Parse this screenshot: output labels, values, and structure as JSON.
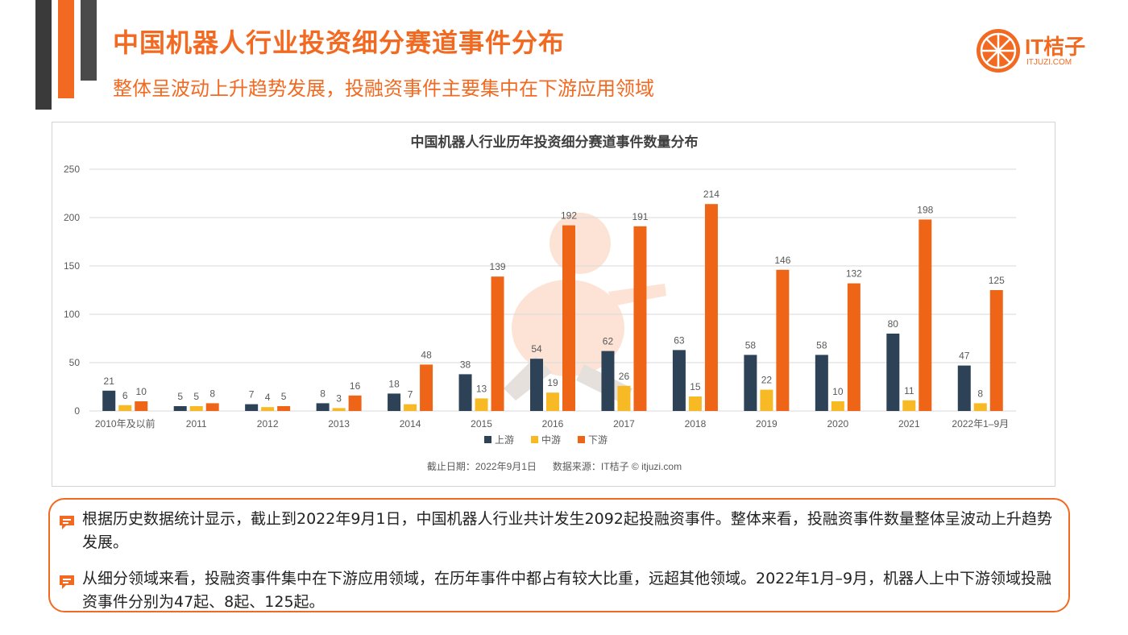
{
  "header": {
    "title": "中国机器人行业投资细分赛道事件分布",
    "subtitle": "整体呈波动上升趋势发展，投融资事件主要集中在下游应用领域"
  },
  "logo": {
    "text": "IT桔子",
    "sub": "ITJUZI.COM"
  },
  "chart_data": {
    "type": "bar",
    "title": "中国机器人行业历年投资细分赛道事件数量分布",
    "categories": [
      "2010年及以前",
      "2011",
      "2012",
      "2013",
      "2014",
      "2015",
      "2016",
      "2017",
      "2018",
      "2019",
      "2020",
      "2021",
      "2022年1–9月"
    ],
    "series": [
      {
        "name": "上游",
        "color": "#2d4257",
        "values": [
          21,
          5,
          7,
          8,
          18,
          38,
          54,
          62,
          63,
          58,
          58,
          80,
          47
        ]
      },
      {
        "name": "中游",
        "color": "#f7b924",
        "values": [
          6,
          5,
          4,
          3,
          7,
          13,
          19,
          26,
          15,
          22,
          10,
          11,
          8
        ]
      },
      {
        "name": "下游",
        "color": "#ef6518",
        "values": [
          10,
          8,
          5,
          16,
          48,
          139,
          192,
          191,
          214,
          146,
          132,
          198,
          125
        ]
      }
    ],
    "ylim": [
      0,
      250
    ],
    "yticks": [
      0,
      50,
      100,
      150,
      200,
      250
    ],
    "grid": true,
    "legend": "bottom-center",
    "footnote": "截止日期：2022年9月1日      数据来源：IT桔子 © itjuzi.com"
  },
  "notes": [
    "根据历史数据统计显示，截止到2022年9月1日，中国机器人行业共计发生2092起投融资事件。整体来看，投融资事件数量整体呈波动上升趋势发展。",
    "从细分领域来看，投融资事件集中在下游应用领域，在历年事件中都占有较大比重，远超其他领域。2022年1月–9月，机器人上中下游领域投融资事件分别为47起、8起、125起。"
  ],
  "colors": {
    "accent": "#f26a21",
    "upstream": "#2d4257",
    "midstream": "#f7b924",
    "downstream": "#ef6518"
  }
}
